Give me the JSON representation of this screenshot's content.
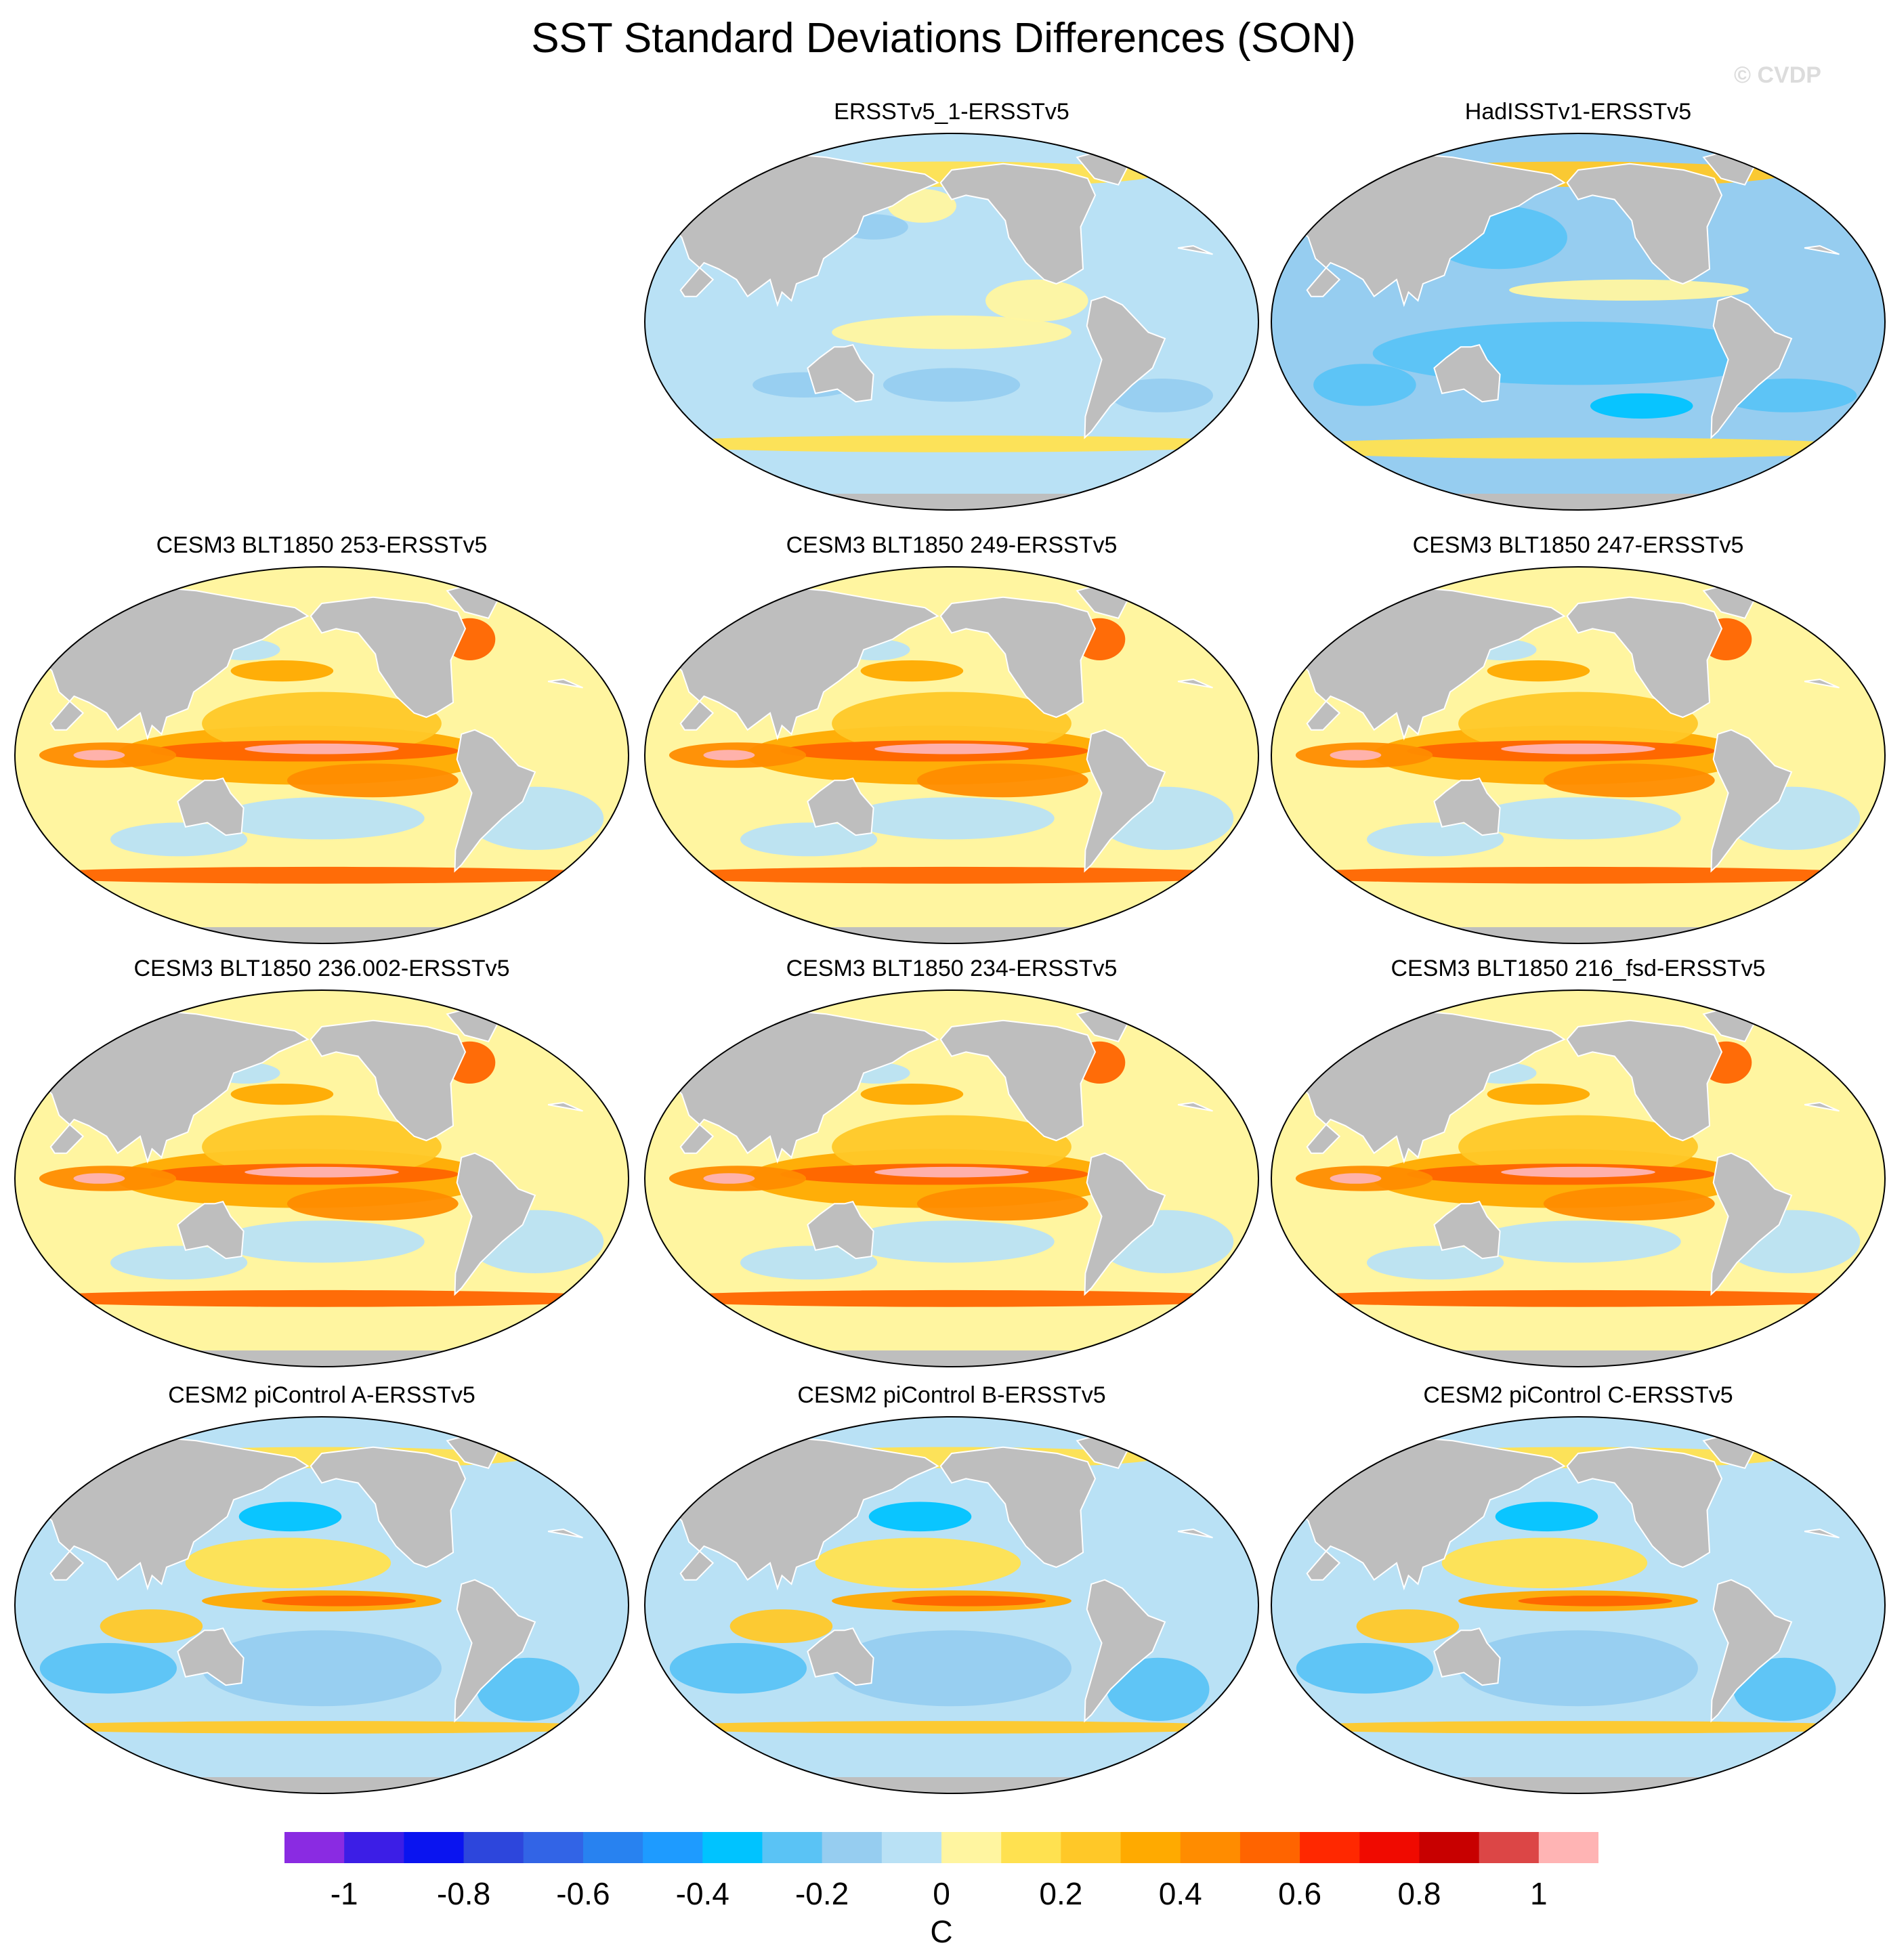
{
  "title": "SST Standard Deviations Differences (SON)",
  "copyright": "© CVDP",
  "panels": [
    {
      "label": "ERSSTv5_1-ERSSTv5",
      "pattern": "obs1"
    },
    {
      "label": "HadISSTv1-ERSSTv5",
      "pattern": "obs2"
    },
    {
      "label": "CESM3 BLT1850 253-ERSSTv5",
      "pattern": "cesm3"
    },
    {
      "label": "CESM3 BLT1850 249-ERSSTv5",
      "pattern": "cesm3"
    },
    {
      "label": "CESM3 BLT1850 247-ERSSTv5",
      "pattern": "cesm3"
    },
    {
      "label": "CESM3 BLT1850 236.002-ERSSTv5",
      "pattern": "cesm3"
    },
    {
      "label": "CESM3 BLT1850 234-ERSSTv5",
      "pattern": "cesm3"
    },
    {
      "label": "CESM3 BLT1850 216_fsd-ERSSTv5",
      "pattern": "cesm3"
    },
    {
      "label": "CESM2 piControl A-ERSSTv5",
      "pattern": "cesm2"
    },
    {
      "label": "CESM2 piControl B-ERSSTv5",
      "pattern": "cesm2"
    },
    {
      "label": "CESM2 piControl C-ERSSTv5",
      "pattern": "cesm2"
    }
  ],
  "colorbar": {
    "units": "C",
    "levels": [
      -1.1,
      -1,
      -0.9,
      -0.8,
      -0.7,
      -0.6,
      -0.5,
      -0.4,
      -0.3,
      -0.2,
      -0.1,
      0,
      0.1,
      0.2,
      0.3,
      0.4,
      0.5,
      0.6,
      0.7,
      0.8,
      0.9,
      1,
      1.1
    ],
    "tick_labels": [
      "-1",
      "-0.8",
      "-0.6",
      "-0.4",
      "-0.2",
      "0",
      "0.2",
      "0.4",
      "0.6",
      "0.8",
      "1"
    ],
    "colors": [
      "#8a2be2",
      "#3c1ee6",
      "#0a14f0",
      "#2d46dc",
      "#3264e6",
      "#2882f0",
      "#1e9bff",
      "#00c3ff",
      "#5ac3f5",
      "#96cdf0",
      "#b9e1f5",
      "#fff5a0",
      "#ffe150",
      "#ffc828",
      "#ffaa00",
      "#ff8c00",
      "#ff6400",
      "#ff2800",
      "#f00a00",
      "#c80000",
      "#dc4646",
      "#ffb4b4"
    ]
  },
  "land_color": "#bebebe"
}
